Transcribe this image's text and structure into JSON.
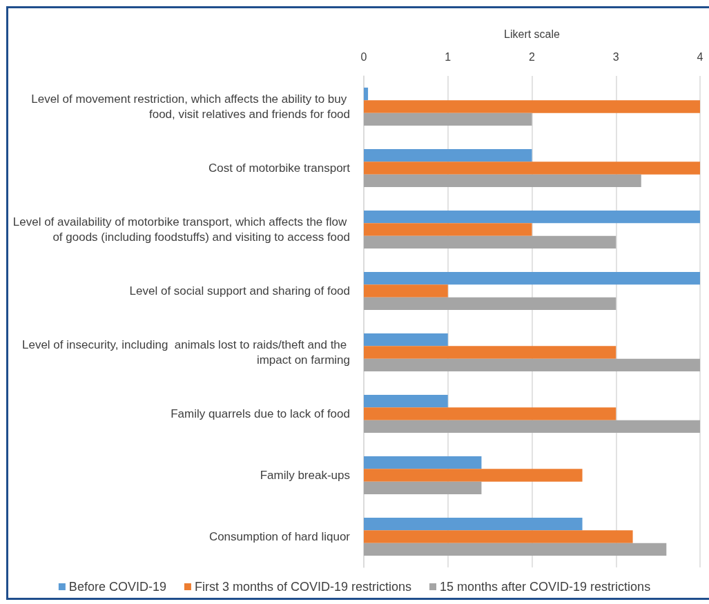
{
  "chart_data": {
    "type": "bar",
    "orientation": "horizontal",
    "xlabel": "Likert scale",
    "categories": [
      "Level of movement restriction, which affects the ability to buy food, visit relatives and friends for food",
      "Cost of motorbike transport",
      "Level of availability of motorbike transport, which affects the flow of goods (including foodstuffs) and visiting to access food",
      "Level of social support and sharing of food",
      "Level of insecurity, including  animals lost to raids/theft and the impact on farming",
      "Family quarrels due to lack of food",
      "Family break-ups",
      "Consumption of hard liquor"
    ],
    "series": [
      {
        "name": "Before COVID-19",
        "color": "#5b9bd5",
        "values": [
          0.05,
          2,
          4,
          4,
          1,
          1,
          1.4,
          2.6
        ]
      },
      {
        "name": "First 3 months of COVID-19 restrictions",
        "color": "#ed7d31",
        "values": [
          4,
          4,
          2,
          1,
          3,
          3,
          2.6,
          3.2
        ]
      },
      {
        "name": "15 months after COVID-19 restrictions",
        "color": "#a5a5a5",
        "values": [
          2,
          3.3,
          3,
          3,
          4,
          4,
          1.4,
          3.6
        ]
      }
    ],
    "xlim": [
      0,
      4
    ],
    "xticks": [
      0,
      1,
      2,
      3,
      4
    ],
    "grid": true,
    "legend": "bottom"
  }
}
